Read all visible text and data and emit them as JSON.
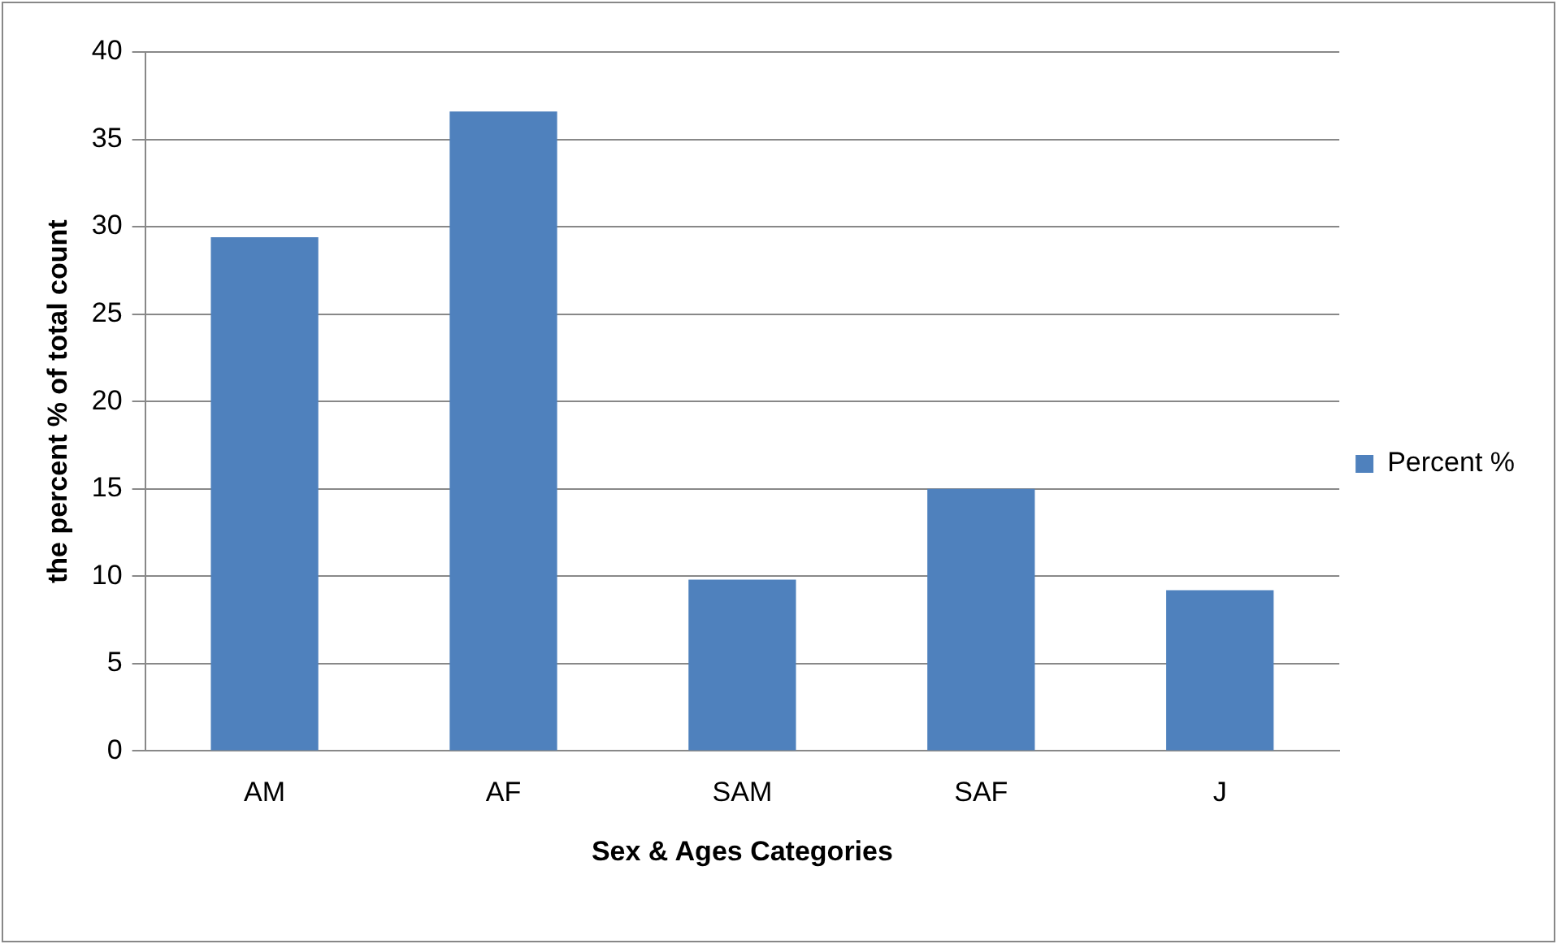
{
  "chart_data": {
    "type": "bar",
    "xlabel": "Sex & Ages Categories",
    "ylabel": "the percent % of total count",
    "categories": [
      "AM",
      "AF",
      "SAM",
      "SAF",
      "J"
    ],
    "series": [
      {
        "name": "Percent %",
        "color": "#4f81bd",
        "values": [
          29.4,
          36.6,
          9.8,
          15.0,
          9.2
        ]
      }
    ],
    "ylim": [
      0,
      40
    ],
    "yticks": [
      0,
      5,
      10,
      15,
      20,
      25,
      30,
      35,
      40
    ],
    "grid": "y",
    "legend": "right"
  }
}
